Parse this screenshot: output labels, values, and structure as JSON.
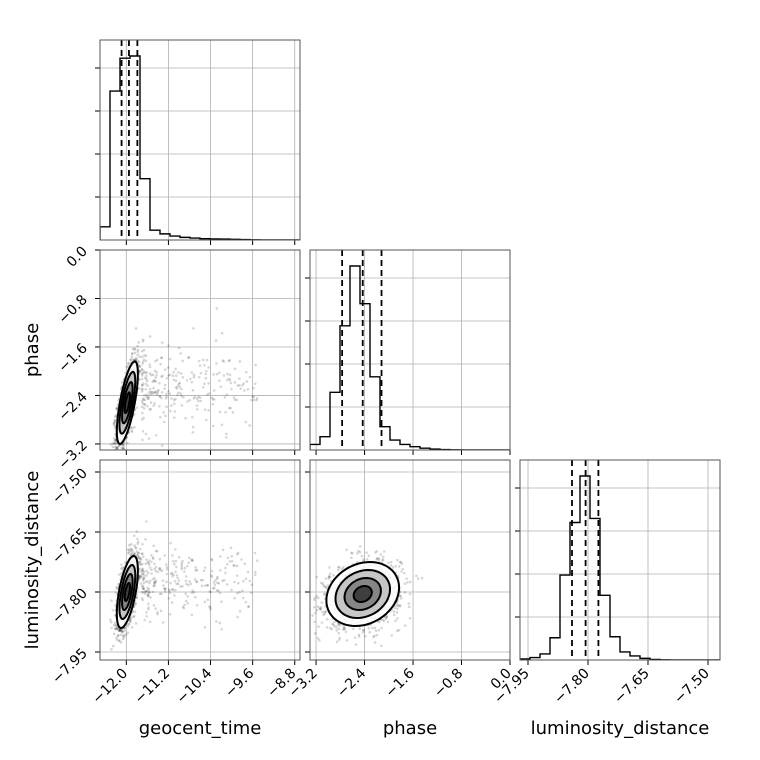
{
  "chart_data": {
    "type": "corner",
    "parameters": [
      "geocent_time",
      "phase",
      "luminosity_distance"
    ],
    "axes": {
      "geocent_time": {
        "label": "geocent_time",
        "range": [
          -12.5,
          -8.7
        ],
        "ticks": [
          -12.0,
          -11.2,
          -10.4,
          -9.6,
          -8.8
        ],
        "tick_labels": [
          "−12.0",
          "−11.2",
          "−10.4",
          "−9.6",
          "−8.8"
        ]
      },
      "phase": {
        "label": "phase",
        "range": [
          -3.3,
          0.0
        ],
        "ticks": [
          -3.2,
          -2.4,
          -1.6,
          -0.8,
          0.0
        ],
        "tick_labels": [
          "−3.2",
          "−2.4",
          "−1.6",
          "−0.8",
          "0.0"
        ]
      },
      "luminosity_distance": {
        "label": "luminosity_distance",
        "range": [
          -7.97,
          -7.47
        ],
        "ticks": [
          -7.95,
          -7.8,
          -7.65,
          -7.5
        ],
        "tick_labels": [
          "−7.95",
          "−7.80",
          "−7.65",
          "−7.50"
        ]
      }
    },
    "histograms": {
      "geocent_time": {
        "edges": [
          -12.5,
          -12.31,
          -12.12,
          -11.93,
          -11.74,
          -11.55,
          -11.36,
          -11.17,
          -10.98,
          -10.79,
          -10.6,
          -10.41,
          -10.22,
          -10.03,
          -9.84,
          -9.65,
          -9.46,
          -9.27,
          -9.08,
          -8.89,
          -8.7
        ],
        "counts": [
          60,
          680,
          830,
          840,
          280,
          45,
          28,
          18,
          12,
          9,
          6,
          5,
          4,
          3,
          2,
          1,
          0,
          0,
          0,
          0
        ],
        "quantiles": [
          -12.09,
          -11.95,
          -11.79
        ]
      },
      "phase": {
        "edges": [
          -3.3,
          -3.135,
          -2.97,
          -2.805,
          -2.64,
          -2.475,
          -2.31,
          -2.145,
          -1.98,
          -1.815,
          -1.65,
          -1.485,
          -1.32,
          -1.155,
          -0.99,
          -0.825,
          -0.66,
          -0.495,
          -0.33,
          -0.165,
          0.0
        ],
        "counts": [
          25,
          60,
          260,
          560,
          830,
          660,
          330,
          105,
          45,
          25,
          15,
          8,
          4,
          2,
          1,
          0,
          0,
          0,
          0,
          0
        ],
        "quantiles": [
          -2.77,
          -2.43,
          -2.12
        ]
      },
      "luminosity_distance": {
        "edges": [
          -7.97,
          -7.945,
          -7.92,
          -7.895,
          -7.87,
          -7.845,
          -7.82,
          -7.795,
          -7.77,
          -7.745,
          -7.72,
          -7.695,
          -7.67,
          -7.645,
          -7.62,
          -7.595,
          -7.57,
          -7.545,
          -7.52,
          -7.495,
          -7.47
        ],
        "counts": [
          5,
          12,
          30,
          110,
          420,
          680,
          910,
          700,
          320,
          115,
          40,
          20,
          8,
          3,
          1,
          0,
          0,
          0,
          0,
          0
        ],
        "quantiles": [
          -7.84,
          -7.806,
          -7.774
        ]
      }
    },
    "pairs": [
      {
        "x": "geocent_time",
        "y": "phase",
        "mean": [
          -11.98,
          -2.52
        ],
        "sd": [
          0.1,
          0.34
        ],
        "corr": 0.7,
        "tail": {
          "x_range": [
            -11.7,
            -9.5
          ],
          "y_mean": -2.3,
          "y_sd": 0.35
        }
      },
      {
        "x": "geocent_time",
        "y": "luminosity_distance",
        "mean": [
          -11.98,
          -7.8
        ],
        "sd": [
          0.1,
          0.045
        ],
        "corr": 0.6,
        "tail": {
          "x_range": [
            -11.7,
            -9.5
          ],
          "y_mean": -7.77,
          "y_sd": 0.04
        }
      },
      {
        "x": "phase",
        "y": "luminosity_distance",
        "mean": [
          -2.43,
          -7.805
        ],
        "sd": [
          0.3,
          0.04
        ],
        "corr": 0.2
      }
    ],
    "contour_levels": [
      0.5,
      1.0,
      1.5,
      2.0
    ],
    "grid": true
  }
}
